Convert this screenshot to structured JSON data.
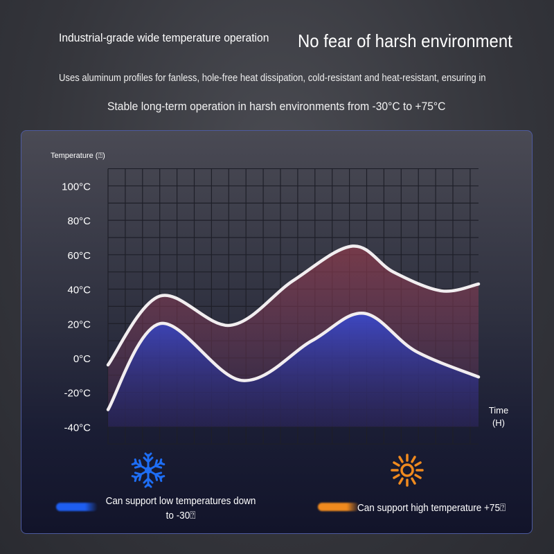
{
  "header": {
    "title_left": "Industrial-grade wide temperature operation",
    "title_right": "No fear of harsh environment",
    "subtitle_line1": "Uses aluminum profiles for fanless, hole-free heat dissipation, cold-resistant and heat-resistant, ensuring in",
    "subtitle_line2": "Stable long-term operation in harsh environments from -30°C to +75°C"
  },
  "chart_data": {
    "type": "area",
    "ylabel": "Temperature (⍰)",
    "xlabel_line1": "Time",
    "xlabel_line2": "(H)",
    "ylim": [
      -40,
      100
    ],
    "yticks": [
      "100°C",
      "80°C",
      "60°C",
      "40°C",
      "20°C",
      "0°C",
      "-20°C",
      "-40°C"
    ],
    "ytick_values": [
      100,
      80,
      60,
      40,
      20,
      0,
      -20,
      -40
    ],
    "grid": true,
    "series": [
      {
        "x": [
          0,
          1.4,
          3.3,
          5,
          6.6,
          7.7,
          9,
          10
        ],
        "values": [
          -4,
          36,
          19,
          45,
          65,
          50,
          39,
          43
        ],
        "fill": "#8a3a4a"
      },
      {
        "x": [
          0,
          1.4,
          3.6,
          5.5,
          6.9,
          8.3,
          10
        ],
        "values": [
          -30,
          20,
          -13,
          10,
          26,
          4,
          -11
        ],
        "fill": "#2a3aa8"
      }
    ]
  },
  "features": [
    {
      "icon": "snowflake-icon",
      "color": "#1e5ef0",
      "label_line1": "Can support low temperatures down",
      "label_line2": "to -30⍰"
    },
    {
      "icon": "sun-icon",
      "color": "#f08a1e",
      "label": "Can support high temperature +75⍰"
    }
  ]
}
